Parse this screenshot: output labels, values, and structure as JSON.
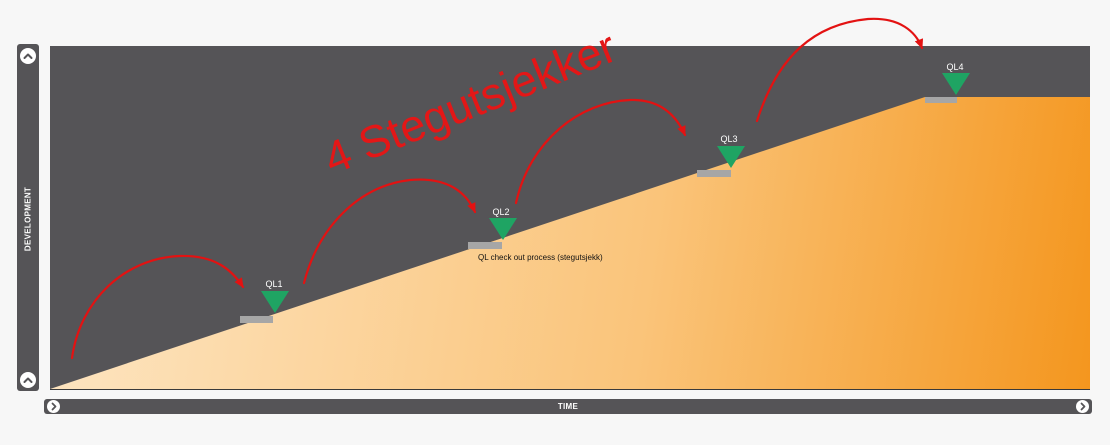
{
  "axis": {
    "y_label": "DEVELOPMENT",
    "x_label": "TIME"
  },
  "quality_gates": [
    {
      "label": "QL1"
    },
    {
      "label": "QL2"
    },
    {
      "label": "QL3"
    },
    {
      "label": "QL4"
    }
  ],
  "annotation": {
    "note": "QL check out process (stegutsjekk)",
    "handwritten_title": "4 Stegutsjekker"
  },
  "colors": {
    "panel": "#555457",
    "ramp_light": "#fde3bd",
    "ramp_dark": "#f4961e",
    "gate_marker": "#1fa463",
    "gate_step": "#a6a6a6",
    "arrows": "#e31212"
  },
  "icons": {
    "y_scroll_top": "chevron-up-icon",
    "y_scroll_bottom": "chevron-up-icon",
    "x_scroll_left": "chevron-right-icon",
    "x_scroll_right": "chevron-right-icon"
  }
}
